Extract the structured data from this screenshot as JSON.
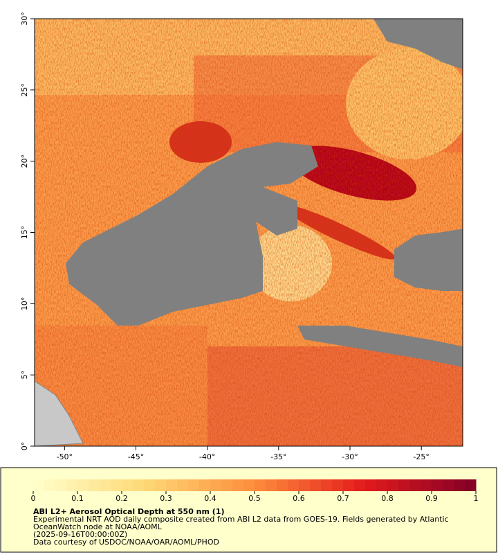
{
  "map": {
    "xlim": [
      -52.1,
      -22.1
    ],
    "ylim": [
      0,
      30
    ],
    "xticks": [
      {
        "value": -50,
        "label": "-50°"
      },
      {
        "value": -45,
        "label": "-45°"
      },
      {
        "value": -40,
        "label": "-40°"
      },
      {
        "value": -35,
        "label": "-35°"
      },
      {
        "value": -30,
        "label": "-30°"
      },
      {
        "value": -25,
        "label": "-25°"
      }
    ],
    "yticks": [
      {
        "value": 0,
        "label": "0°"
      },
      {
        "value": 5,
        "label": "5°"
      },
      {
        "value": 10,
        "label": "10°"
      },
      {
        "value": 15,
        "label": "15°"
      },
      {
        "value": 20,
        "label": "20°"
      },
      {
        "value": 25,
        "label": "25°"
      },
      {
        "value": 30,
        "label": "30°"
      }
    ]
  },
  "colorbar": {
    "lim": [
      0,
      1
    ],
    "ticks": [
      0,
      0.1,
      0.2,
      0.3,
      0.4,
      0.5,
      0.6,
      0.7,
      0.8,
      0.9,
      1
    ],
    "colormap": [
      "#ffffcc",
      "#fed976",
      "#fd8d3c",
      "#e31a1c",
      "#800026"
    ],
    "title": "ABI L2+ Aerosol Optical Depth at 550 nm (1)",
    "notes": [
      "Experimental NRT AOD daily composite created from ABI L2 data from GOES-19. Fields generated by Atlantic",
      "OceanWatch node at NOAA/AOML",
      "(2025-09-16T00:00:00Z)",
      "Data courtesy of USDOC/NOAA/OAR/AOML/PHOD"
    ]
  }
}
